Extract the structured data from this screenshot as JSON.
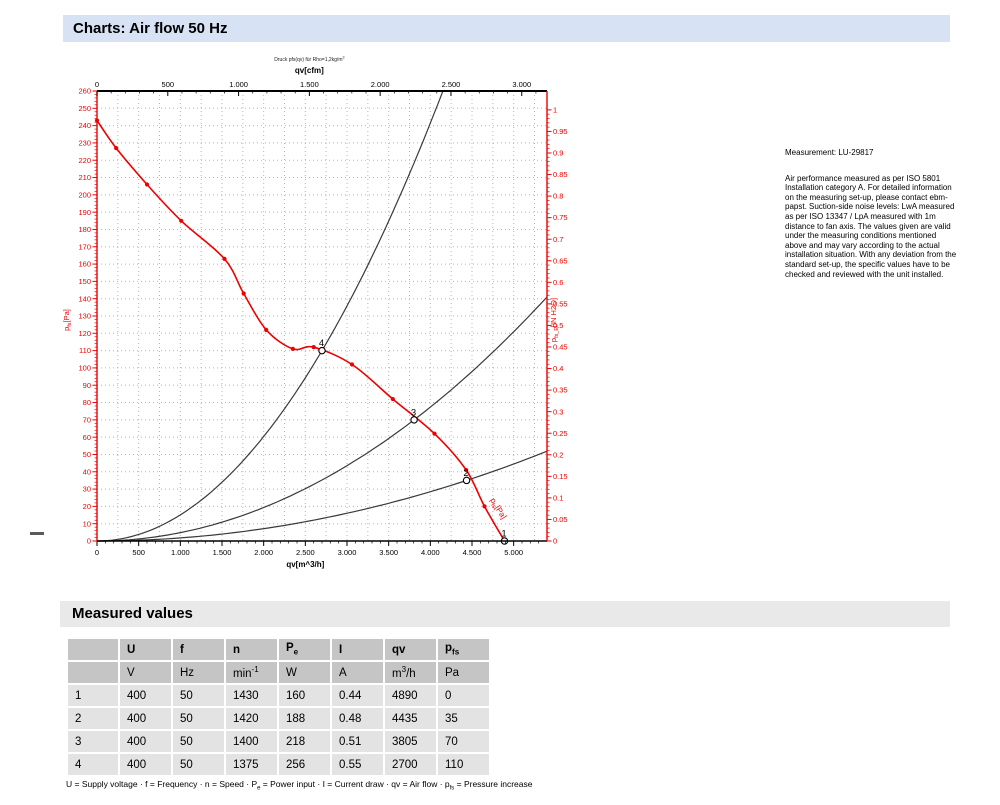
{
  "page": {
    "title_bar": "Charts: Air flow 50 Hz"
  },
  "info": {
    "measurement": "Measurement: LU-29817",
    "description": "Air performance measured as per ISO 5801 Installation category A. For detailed information on the measuring set-up, please contact ebm-papst. Suction-side noise levels: LwA measured as per ISO 13347 / LpA measured with 1m distance to fan axis. The values given are valid under the measuring conditions mentioned above and may vary according to the actual installation situation. With any deviation from the standard set-up, the specific values have to be checked and reviewed with the unit installed."
  },
  "chart_data": {
    "type": "line",
    "title": "Druck pfs(qv) für Rho=1,2kg/m^3^",
    "top_axis": {
      "label": "qv[cfm]",
      "min": 0,
      "max": 3178,
      "tick_step": 500,
      "tick_max": 3000,
      "minor_step": 100,
      "to_m3h": 1.699
    },
    "bottom_axis": {
      "label": "qv[m^3/h]",
      "min": 0,
      "max": 5400,
      "tick_step": 500,
      "tick_max": 5000,
      "minor_step": 100
    },
    "left_axis": {
      "label": "p~fs~[Pa]",
      "min": 0,
      "max": 260,
      "tick_step": 10,
      "minor_step": 2
    },
    "right_axis": {
      "label": "p~fs_E~[IN H2O]",
      "min": 0,
      "max": 1,
      "tick_step": 0.05,
      "minor_step": 0.01,
      "pa_per_unit": 249.1
    },
    "colors": {
      "axis_red": "#ee0000",
      "curve_red": "#ee0000",
      "system_black": "#3a3a3a",
      "grid": "#b5b5b5"
    },
    "fan_curve": {
      "name": "pfs(qv) 50 Hz",
      "curve_label": "p~fs~[Pa]",
      "points": [
        [
          0,
          243
        ],
        [
          230,
          227
        ],
        [
          600,
          206
        ],
        [
          1010,
          185
        ],
        [
          1530,
          163
        ],
        [
          1760,
          143
        ],
        [
          2030,
          122
        ],
        [
          2350,
          111
        ],
        [
          2600,
          112
        ],
        [
          3060,
          102
        ],
        [
          3550,
          82
        ],
        [
          4050,
          62
        ],
        [
          4430,
          41
        ],
        [
          4650,
          20
        ],
        [
          4890,
          0
        ]
      ]
    },
    "operating_points": [
      {
        "label": "1",
        "qv": 4890,
        "pfs": 0
      },
      {
        "label": "2",
        "qv": 4435,
        "pfs": 35
      },
      {
        "label": "3",
        "qv": 3805,
        "pfs": 70
      },
      {
        "label": "4",
        "qv": 2700,
        "pfs": 110
      }
    ],
    "system_curves": [
      {
        "through_qv": 2700,
        "through_pfs": 110
      },
      {
        "through_qv": 3805,
        "through_pfs": 70
      },
      {
        "through_qv": 4435,
        "through_pfs": 35
      }
    ]
  },
  "measured": {
    "section_title": "Measured values",
    "columns": [
      {
        "name": "",
        "unit": ""
      },
      {
        "name": "U",
        "unit": "V"
      },
      {
        "name": "f",
        "unit": "Hz"
      },
      {
        "name": "n",
        "unit": "min^-1^"
      },
      {
        "name": "P~e~",
        "unit": "W"
      },
      {
        "name": "I",
        "unit": "A"
      },
      {
        "name": "qv",
        "unit": "m^3^/h"
      },
      {
        "name": "p~fs~",
        "unit": "Pa"
      }
    ],
    "rows": [
      [
        "1",
        "400",
        "50",
        "1430",
        "160",
        "0.44",
        "4890",
        "0"
      ],
      [
        "2",
        "400",
        "50",
        "1420",
        "188",
        "0.48",
        "4435",
        "35"
      ],
      [
        "3",
        "400",
        "50",
        "1400",
        "218",
        "0.51",
        "3805",
        "70"
      ],
      [
        "4",
        "400",
        "50",
        "1375",
        "256",
        "0.55",
        "2700",
        "110"
      ]
    ],
    "legend": "U = Supply voltage · f = Frequency · n = Speed · P~e~ = Power input · I = Current draw · qv = Air flow · p~fs~ = Pressure increase"
  }
}
